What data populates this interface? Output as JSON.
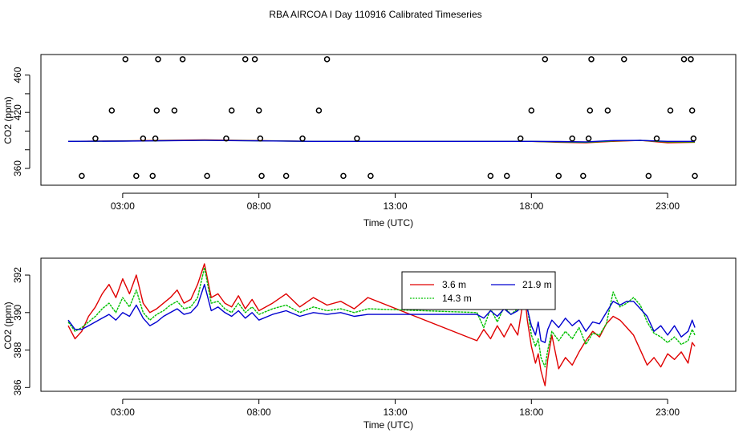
{
  "page_title": "RBA AIRCOA I  Day 110916  Calibrated Timeseries",
  "chart_data": [
    {
      "id": "top",
      "type": "scatter",
      "title": "RBA AIRCOA I  Day 110916  Calibrated Timeseries",
      "xlabel": "Time (UTC)",
      "ylabel": "CO2 (ppm)",
      "xlim": [
        0.0,
        25.5
      ],
      "ylim": [
        342,
        482
      ],
      "xticks": [
        3,
        8,
        13,
        18,
        23
      ],
      "xtick_labels": [
        "03:00",
        "08:00",
        "13:00",
        "18:00",
        "23:00"
      ],
      "yticks": [
        360,
        380,
        400,
        420,
        440,
        460
      ],
      "ytick_labels": [
        "360",
        "",
        "",
        "420",
        "",
        "460"
      ],
      "calibration_points": {
        "color": "#000000",
        "x": [
          1.5,
          2.0,
          2.6,
          3.1,
          3.5,
          3.75,
          4.1,
          4.2,
          4.25,
          4.3,
          4.9,
          5.2,
          6.1,
          6.8,
          7.0,
          7.5,
          7.85,
          8.0,
          8.05,
          8.1,
          9.0,
          9.6,
          10.2,
          10.5,
          11.1,
          11.6,
          12.1,
          16.5,
          17.1,
          17.6,
          18.0,
          18.5,
          19.0,
          19.5,
          19.9,
          20.1,
          20.15,
          20.2,
          20.8,
          21.4,
          22.3,
          22.6,
          23.1,
          23.6,
          23.85,
          23.9,
          23.95,
          24.0
        ],
        "y": [
          352,
          392,
          422,
          477,
          352,
          392,
          352,
          392,
          422,
          477,
          422,
          477,
          352,
          392,
          422,
          477,
          477,
          422,
          392,
          352,
          352,
          392,
          422,
          477,
          352,
          392,
          352,
          352,
          352,
          392,
          422,
          477,
          352,
          392,
          352,
          392,
          422,
          477,
          422,
          477,
          352,
          392,
          422,
          477,
          477,
          422,
          392,
          352
        ]
      },
      "series": [
        {
          "name": "3.6 m",
          "color": "#e00000",
          "x": [
            1.0,
            3.0,
            6.0,
            10.0,
            14.0,
            18.0,
            19.0,
            20.0,
            21.0,
            22.0,
            23.0,
            24.0
          ],
          "y": [
            389,
            389.5,
            390.5,
            389,
            389,
            389,
            388,
            387.5,
            389,
            390,
            387.5,
            388
          ]
        },
        {
          "name": "14.3 m",
          "color": "#00c000",
          "x": [
            1.0,
            3.0,
            6.0,
            10.0,
            14.0,
            18.0,
            19.0,
            20.0,
            21.0,
            22.0,
            23.0,
            24.0
          ],
          "y": [
            389,
            389.3,
            390.2,
            389,
            389,
            389,
            388.5,
            388,
            389.5,
            390,
            388.5,
            388.5
          ]
        },
        {
          "name": "21.9 m",
          "color": "#0000d0",
          "x": [
            1.0,
            3.0,
            6.0,
            10.0,
            14.0,
            18.0,
            19.0,
            20.0,
            21.0,
            22.0,
            23.0,
            24.0
          ],
          "y": [
            389,
            389.2,
            390,
            389,
            389,
            389,
            388.8,
            388.5,
            389.8,
            390,
            389,
            389
          ]
        }
      ]
    },
    {
      "id": "bottom",
      "type": "line",
      "xlabel": "Time (UTC)",
      "ylabel": "CO2 (ppm)",
      "xlim": [
        0.0,
        25.5
      ],
      "ylim": [
        385.8,
        392.9
      ],
      "xticks": [
        3,
        8,
        13,
        18,
        23
      ],
      "xtick_labels": [
        "03:00",
        "08:00",
        "13:00",
        "18:00",
        "23:00"
      ],
      "yticks": [
        386,
        388,
        390,
        392
      ],
      "ytick_labels": [
        "386",
        "388",
        "390",
        "392"
      ],
      "legend": {
        "location": "top-center",
        "entries": [
          "3.6 m",
          "14.3 m",
          "21.9 m"
        ]
      },
      "series": [
        {
          "name": "3.6 m",
          "color": "#e00000",
          "x": [
            1.0,
            1.25,
            1.5,
            1.75,
            2.0,
            2.25,
            2.5,
            2.75,
            3.0,
            3.25,
            3.5,
            3.75,
            4.0,
            4.25,
            4.5,
            4.75,
            5.0,
            5.25,
            5.5,
            5.75,
            6.0,
            6.25,
            6.5,
            6.75,
            7.0,
            7.25,
            7.5,
            7.75,
            8.0,
            8.5,
            9.0,
            9.5,
            10.0,
            10.5,
            11.0,
            11.5,
            12.0,
            16.0,
            16.25,
            16.5,
            16.75,
            17.0,
            17.25,
            17.5,
            17.75,
            17.85,
            18.0,
            18.15,
            18.25,
            18.35,
            18.5,
            18.6,
            18.75,
            19.0,
            19.25,
            19.5,
            19.75,
            20.0,
            20.25,
            20.5,
            20.75,
            21.0,
            21.25,
            21.5,
            21.75,
            22.0,
            22.25,
            22.5,
            22.75,
            23.0,
            23.25,
            23.5,
            23.75,
            23.9,
            24.0
          ],
          "y": [
            389.3,
            388.6,
            389.0,
            389.8,
            390.3,
            391.0,
            391.5,
            390.8,
            391.8,
            391.0,
            392.0,
            390.5,
            390.0,
            390.2,
            390.5,
            390.8,
            391.2,
            390.5,
            390.7,
            391.5,
            392.6,
            390.8,
            391.0,
            390.5,
            390.3,
            390.9,
            390.2,
            390.7,
            390.1,
            390.5,
            391.0,
            390.3,
            390.8,
            390.4,
            390.6,
            390.2,
            390.8,
            388.5,
            389.1,
            388.6,
            389.3,
            388.7,
            389.4,
            388.8,
            391.1,
            389.6,
            388.2,
            387.3,
            387.8,
            386.9,
            386.1,
            387.5,
            388.8,
            387.0,
            387.6,
            387.2,
            387.9,
            388.5,
            389.0,
            388.7,
            389.4,
            389.8,
            389.6,
            389.2,
            388.8,
            388.0,
            387.2,
            387.6,
            387.1,
            387.8,
            387.5,
            387.9,
            387.3,
            388.4,
            388.2
          ]
        },
        {
          "name": "14.3 m",
          "color": "#00c000",
          "x": [
            1.0,
            1.25,
            1.5,
            1.75,
            2.0,
            2.25,
            2.5,
            2.75,
            3.0,
            3.25,
            3.5,
            3.75,
            4.0,
            4.25,
            4.5,
            4.75,
            5.0,
            5.25,
            5.5,
            5.75,
            6.0,
            6.25,
            6.5,
            6.75,
            7.0,
            7.25,
            7.5,
            7.75,
            8.0,
            8.5,
            9.0,
            9.5,
            10.0,
            10.5,
            11.0,
            11.5,
            12.0,
            16.0,
            16.25,
            16.5,
            16.75,
            17.0,
            17.25,
            17.5,
            17.75,
            17.85,
            18.0,
            18.15,
            18.25,
            18.35,
            18.5,
            18.6,
            18.75,
            19.0,
            19.25,
            19.5,
            19.75,
            20.0,
            20.25,
            20.5,
            20.75,
            21.0,
            21.25,
            21.5,
            21.75,
            22.0,
            22.25,
            22.5,
            22.75,
            23.0,
            23.25,
            23.5,
            23.75,
            23.9,
            24.0
          ],
          "y": [
            389.5,
            389.0,
            389.2,
            389.5,
            389.8,
            390.2,
            390.5,
            390.0,
            390.8,
            390.3,
            391.2,
            390.0,
            389.6,
            389.9,
            390.1,
            390.4,
            390.6,
            390.2,
            390.3,
            390.8,
            392.4,
            390.5,
            390.6,
            390.2,
            390.0,
            390.5,
            390.0,
            390.3,
            389.9,
            390.2,
            390.4,
            390.0,
            390.3,
            390.1,
            390.2,
            390.0,
            390.2,
            390.0,
            389.2,
            390.2,
            389.5,
            390.3,
            389.9,
            390.2,
            390.8,
            390.3,
            388.8,
            388.2,
            388.6,
            387.6,
            387.1,
            388.0,
            389.0,
            388.5,
            389.0,
            388.6,
            389.2,
            388.3,
            388.9,
            388.8,
            389.4,
            391.1,
            390.3,
            390.5,
            390.8,
            390.4,
            389.5,
            388.9,
            388.7,
            388.4,
            388.7,
            388.3,
            388.5,
            389.1,
            388.8
          ]
        },
        {
          "name": "21.9 m",
          "color": "#0000d0",
          "x": [
            1.0,
            1.25,
            1.5,
            1.75,
            2.0,
            2.25,
            2.5,
            2.75,
            3.0,
            3.25,
            3.5,
            3.75,
            4.0,
            4.25,
            4.5,
            4.75,
            5.0,
            5.25,
            5.5,
            5.75,
            6.0,
            6.25,
            6.5,
            6.75,
            7.0,
            7.25,
            7.5,
            7.75,
            8.0,
            8.5,
            9.0,
            9.5,
            10.0,
            10.5,
            11.0,
            11.5,
            12.0,
            16.0,
            16.25,
            16.5,
            16.75,
            17.0,
            17.25,
            17.5,
            17.75,
            17.85,
            18.0,
            18.15,
            18.25,
            18.35,
            18.5,
            18.6,
            18.75,
            19.0,
            19.25,
            19.5,
            19.75,
            20.0,
            20.25,
            20.5,
            20.75,
            21.0,
            21.25,
            21.5,
            21.75,
            22.0,
            22.25,
            22.5,
            22.75,
            23.0,
            23.25,
            23.5,
            23.75,
            23.9,
            24.0
          ],
          "y": [
            389.6,
            389.1,
            389.1,
            389.3,
            389.5,
            389.7,
            389.9,
            389.6,
            390.0,
            389.8,
            390.4,
            389.7,
            389.3,
            389.5,
            389.8,
            390.0,
            390.2,
            389.9,
            390.0,
            390.4,
            391.5,
            390.1,
            390.3,
            390.0,
            389.8,
            390.1,
            389.7,
            390.0,
            389.6,
            389.9,
            390.1,
            389.8,
            390.0,
            389.9,
            390.0,
            389.8,
            389.9,
            389.9,
            389.7,
            390.1,
            389.8,
            390.2,
            389.9,
            390.1,
            390.6,
            390.2,
            389.3,
            388.8,
            389.5,
            388.5,
            388.4,
            389.1,
            389.6,
            389.2,
            389.7,
            389.3,
            389.6,
            389.0,
            389.5,
            389.4,
            390.0,
            390.6,
            390.4,
            390.6,
            390.6,
            390.2,
            389.8,
            389.0,
            389.3,
            388.8,
            389.3,
            388.7,
            389.0,
            389.6,
            389.2
          ]
        }
      ]
    }
  ]
}
